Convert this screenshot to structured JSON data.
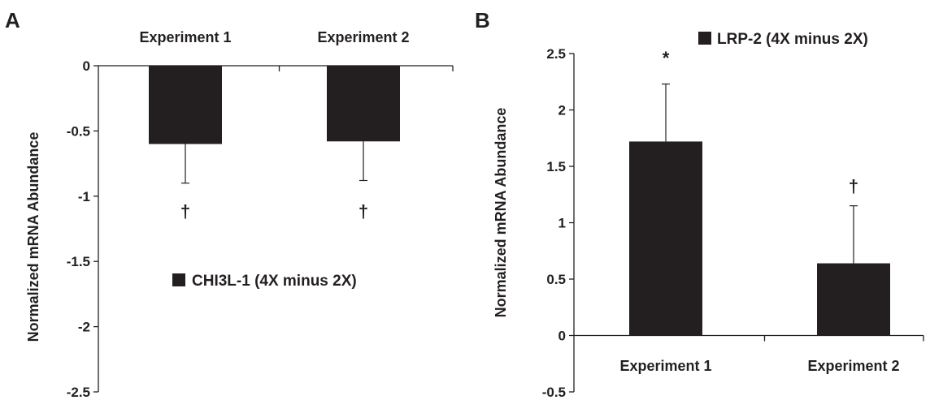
{
  "chart_data": [
    {
      "panel": "A",
      "type": "bar",
      "categories": [
        "Experiment 1",
        "Experiment 2"
      ],
      "series": [
        {
          "name": "CHI3L-1 (4X minus 2X)",
          "values": [
            -0.6,
            -0.58
          ],
          "errors": [
            0.3,
            0.3
          ]
        }
      ],
      "ylabel": "Normalized mRNA Abundance",
      "ylim": [
        -2.5,
        0
      ],
      "yticks": [
        "0",
        "-0.5",
        "-1",
        "-1.5",
        "-2",
        "-2.5"
      ],
      "annotations": [
        "†",
        "†"
      ],
      "legend_position": "middle-right",
      "bar_color": "#231f20",
      "grid": false
    },
    {
      "panel": "B",
      "type": "bar",
      "categories": [
        "Experiment 1",
        "Experiment 2"
      ],
      "series": [
        {
          "name": "LRP-2 (4X minus 2X)",
          "values": [
            1.72,
            0.64
          ],
          "errors": [
            0.51,
            0.51
          ]
        }
      ],
      "ylabel": "Normalized mRNA Abundance",
      "ylim": [
        -0.5,
        2.5
      ],
      "yticks": [
        "2.5",
        "2",
        "1.5",
        "1",
        "0.5",
        "0",
        "-0.5"
      ],
      "annotations": [
        "*",
        "†"
      ],
      "legend_position": "top-right",
      "bar_color": "#231f20",
      "grid": false
    }
  ]
}
